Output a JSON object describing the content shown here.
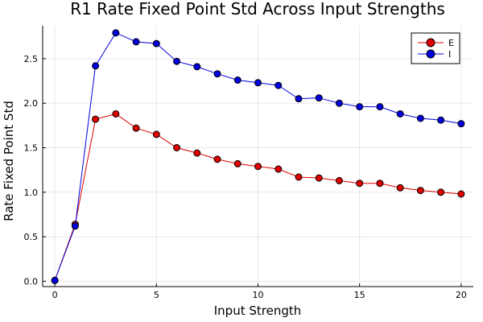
{
  "chart_data": {
    "type": "line",
    "title": "R1 Rate Fixed Point Std Across Input Strengths",
    "xlabel": "Input Strength",
    "ylabel": "Rate Fixed Point Std",
    "x": [
      0,
      1,
      2,
      3,
      4,
      5,
      6,
      7,
      8,
      9,
      10,
      11,
      12,
      13,
      14,
      15,
      16,
      17,
      18,
      19,
      20
    ],
    "xlim": [
      -0.6,
      20.6
    ],
    "ylim": [
      -0.06,
      2.87
    ],
    "xticks": [
      0,
      5,
      10,
      15,
      20
    ],
    "xtick_labels": [
      "0",
      "5",
      "10",
      "15",
      "20"
    ],
    "yticks": [
      0,
      0.5,
      1,
      1.5,
      2,
      2.5
    ],
    "ytick_labels": [
      "0.0",
      "0.5",
      "1.0",
      "1.5",
      "2.0",
      "2.5"
    ],
    "grid": true,
    "legend_position": "top-right",
    "series": [
      {
        "name": "E",
        "color": "#e00000",
        "marker": "circle",
        "values": [
          0.01,
          0.64,
          1.82,
          1.88,
          1.72,
          1.65,
          1.5,
          1.44,
          1.37,
          1.32,
          1.29,
          1.26,
          1.17,
          1.16,
          1.13,
          1.1,
          1.1,
          1.05,
          1.02,
          1.0,
          0.98
        ]
      },
      {
        "name": "I",
        "color": "#0000e0",
        "marker": "circle",
        "values": [
          0.01,
          0.62,
          2.42,
          2.79,
          2.69,
          2.67,
          2.47,
          2.41,
          2.33,
          2.26,
          2.23,
          2.2,
          2.05,
          2.06,
          2.0,
          1.96,
          1.96,
          1.88,
          1.83,
          1.81,
          1.77
        ]
      }
    ]
  }
}
